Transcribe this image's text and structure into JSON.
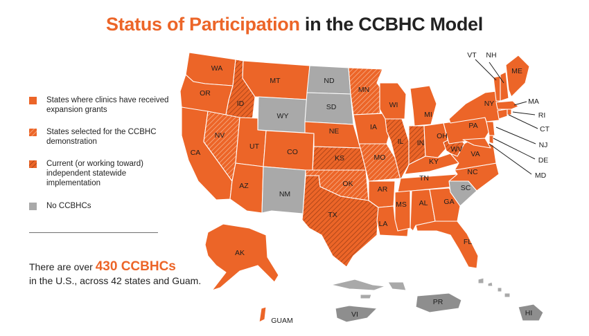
{
  "title": {
    "accent": "Status of Participation",
    "rest": "in the CCBHC Model"
  },
  "colors": {
    "orange": "#ec6528",
    "hatch": "#b5481b",
    "gray": "#a9a9a9",
    "darkgray": "#8e8e8e"
  },
  "legend": [
    {
      "type": "solid",
      "text": "States where clinics have received expansion grants"
    },
    {
      "type": "light-hatch",
      "text": "States selected for the CCBHC demonstration"
    },
    {
      "type": "dark-hatch",
      "text": "Current (or working toward) independent statewide implementation"
    },
    {
      "type": "gray",
      "text": "No CCBHCs"
    }
  ],
  "footnote": {
    "pre": "There are over ",
    "count": "430 CCBHCs",
    "post": "in the U.S., across 42 states and Guam."
  },
  "state_labels": {
    "WA": "WA",
    "OR": "OR",
    "CA": "CA",
    "ID": "ID",
    "NV": "NV",
    "MT": "MT",
    "WY": "WY",
    "UT": "UT",
    "AZ": "AZ",
    "CO": "CO",
    "NM": "NM",
    "ND": "ND",
    "SD": "SD",
    "NE": "NE",
    "KS": "KS",
    "OK": "OK",
    "TX": "TX",
    "MN": "MN",
    "IA": "IA",
    "MO": "MO",
    "AR": "AR",
    "LA": "LA",
    "WI": "WI",
    "IL": "IL",
    "MS": "MS",
    "MI": "MI",
    "IN": "IN",
    "KY": "KY",
    "TN": "TN",
    "AL": "AL",
    "OH": "OH",
    "WV": "WV",
    "VA": "VA",
    "NC": "NC",
    "SC": "SC",
    "GA": "GA",
    "FL": "FL",
    "PA": "PA",
    "NY": "NY",
    "ME": "ME",
    "AK": "AK",
    "GUAM": "GUAM",
    "VI": "VI",
    "PR": "PR",
    "HI": "HI",
    "VT": "VT",
    "NH": "NH",
    "MA": "MA",
    "RI": "RI",
    "CT": "CT",
    "NJ": "NJ",
    "DE": "DE",
    "MD": "MD"
  }
}
